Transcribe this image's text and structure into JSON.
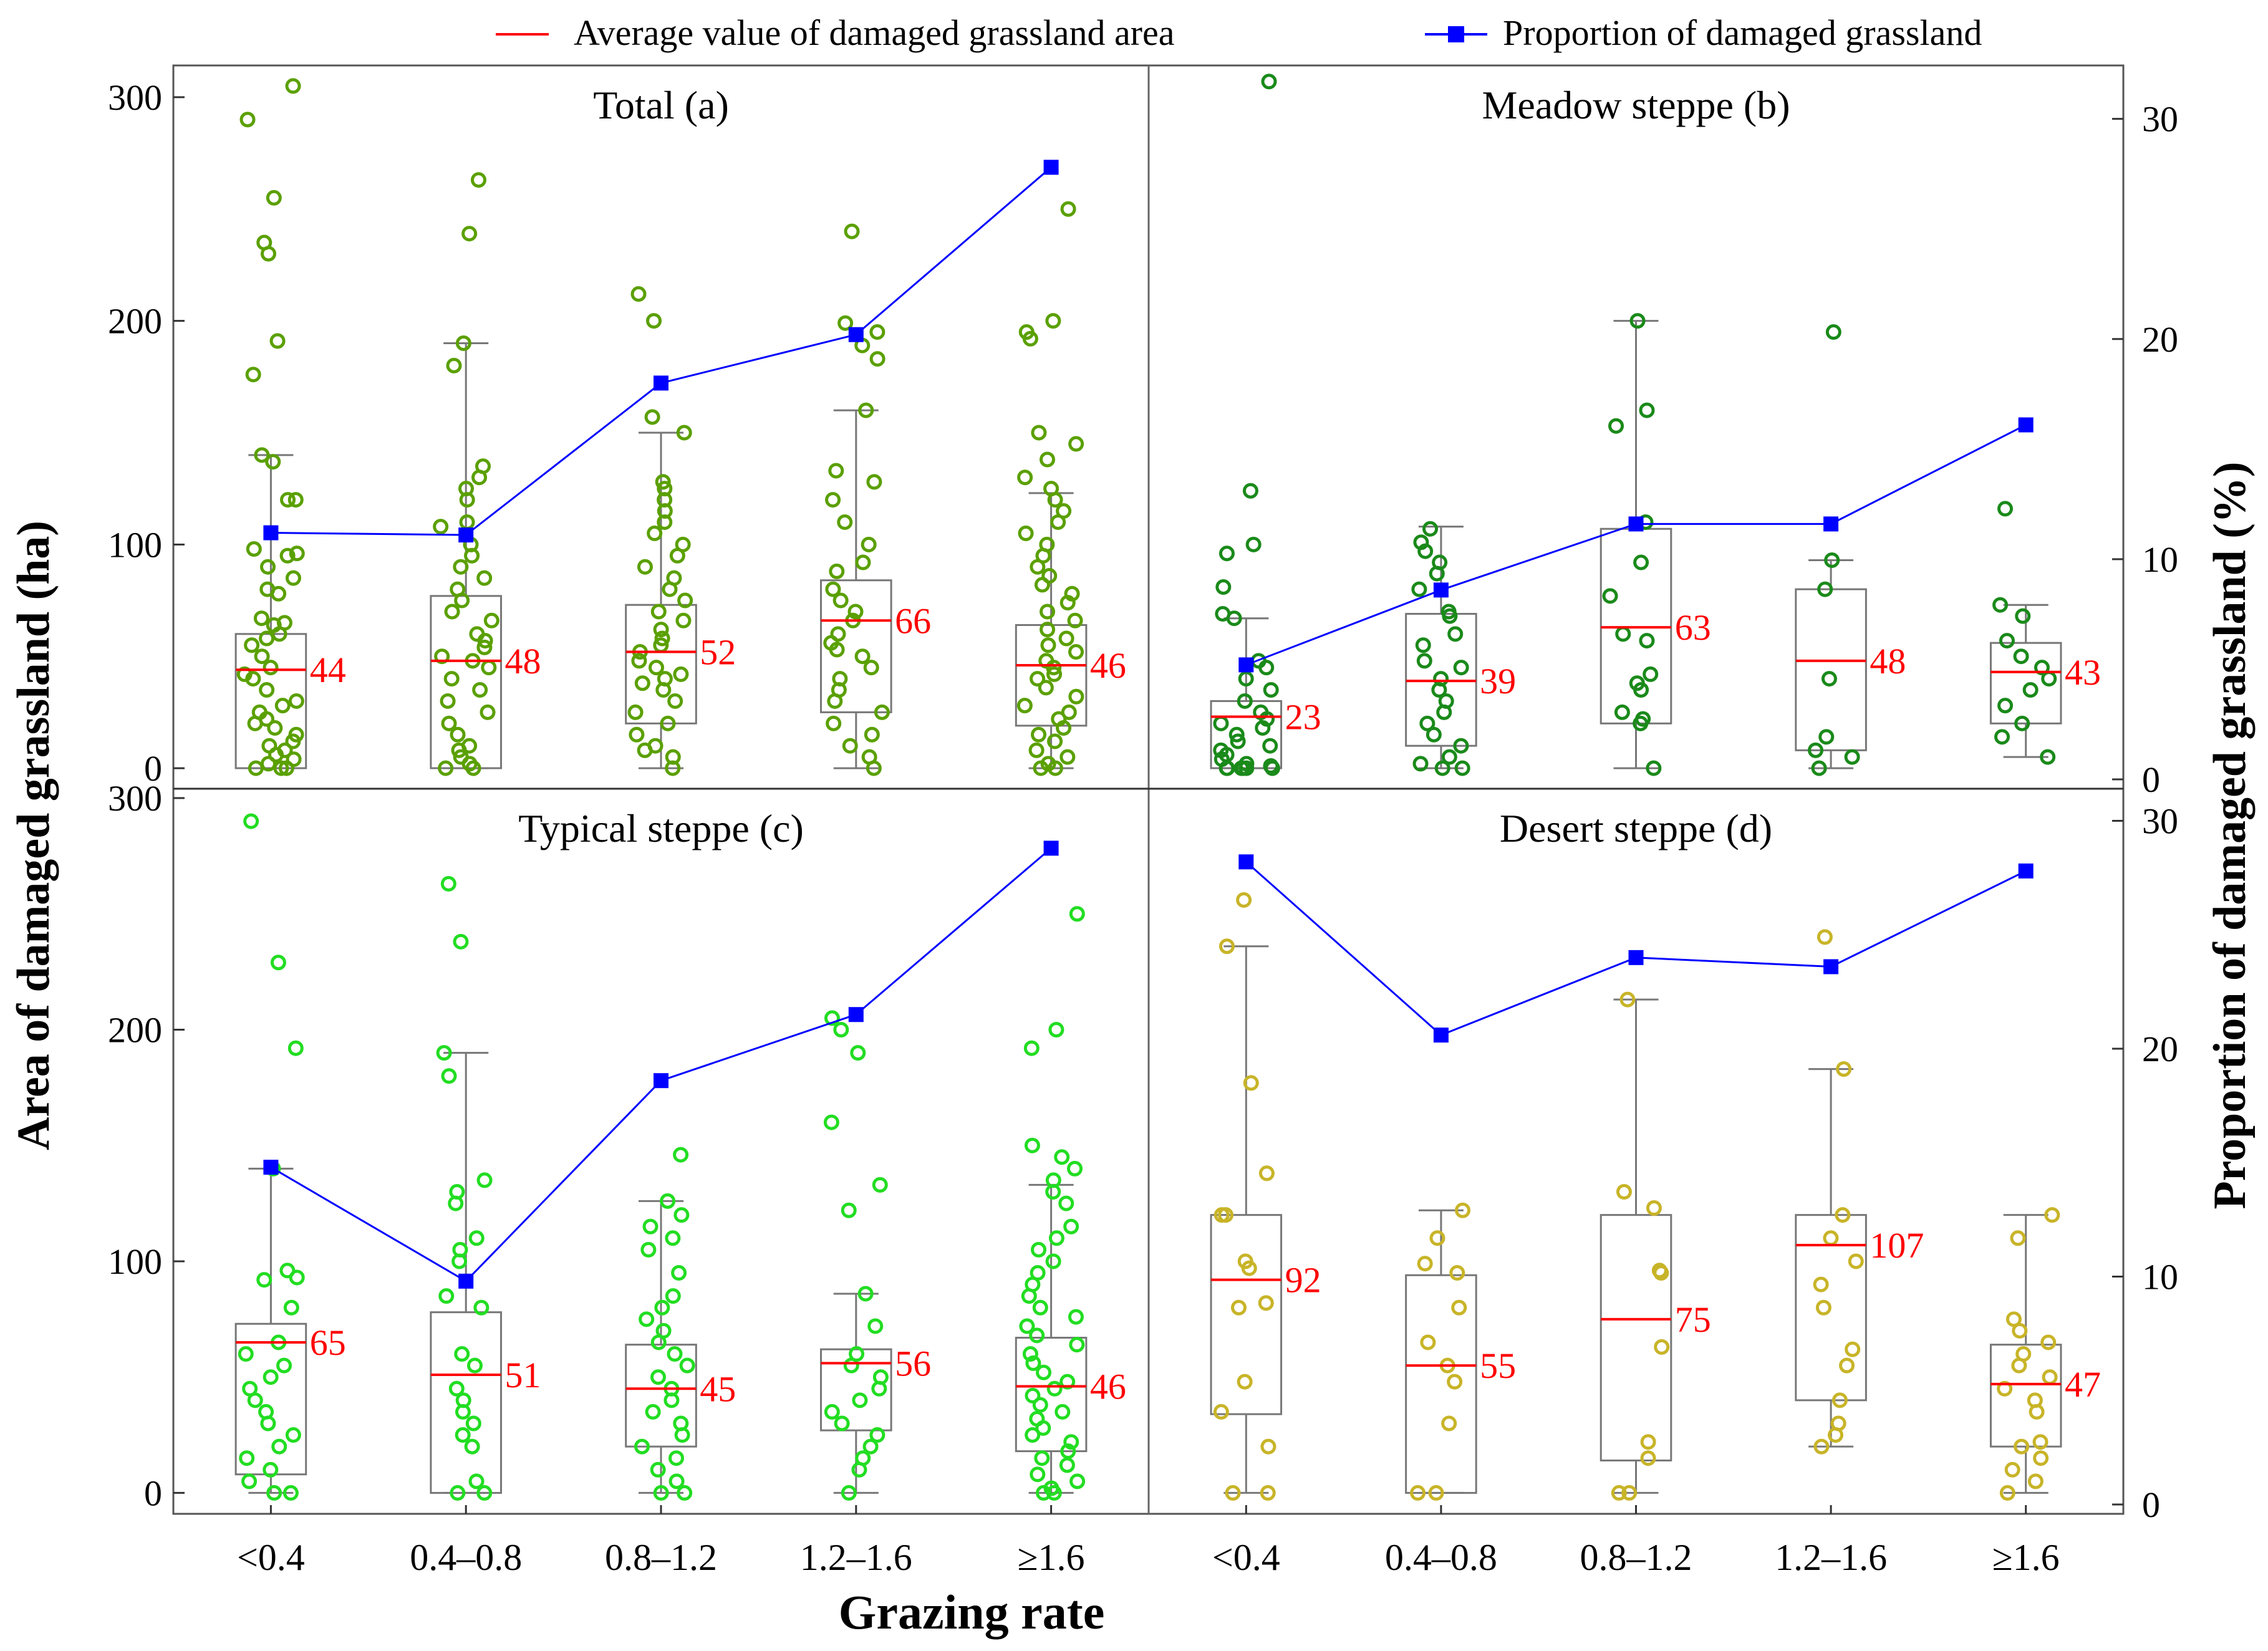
{
  "legend": {
    "avg_label": "Average value of damaged grassland area",
    "prop_label": "Proportion of damaged grassland",
    "avg_color": "#ff0000",
    "prop_color": "#0000ff"
  },
  "axes": {
    "xlabel": "Grazing rate",
    "ylabel_left": "Area  of damaged grassland (ha)",
    "ylabel_right": "Proportion of damaged grassland (%)",
    "left_ticks": [
      "0",
      "100",
      "200",
      "300"
    ],
    "right_ticks": [
      "0",
      "10",
      "20",
      "30"
    ],
    "categories": [
      "<0.4",
      "0.4–0.8",
      "0.8–1.2",
      "1.2–1.6",
      "≥1.6"
    ]
  },
  "chart_data": [
    {
      "type": "box+line",
      "title": "Total (a)",
      "point_color": "#5aa000",
      "categories": [
        "<0.4",
        "0.4–0.8",
        "0.8–1.2",
        "1.2–1.6",
        "≥1.6"
      ],
      "ylim_left": [
        -5,
        310
      ],
      "ylim_right": [
        0,
        32
      ],
      "boxes": [
        {
          "q1": 0,
          "q3": 60,
          "whisker_low": 0,
          "whisker_high": 140,
          "mean": 44,
          "label": "44"
        },
        {
          "q1": 0,
          "q3": 77,
          "whisker_low": 0,
          "whisker_high": 190,
          "mean": 48,
          "label": "48"
        },
        {
          "q1": 20,
          "q3": 73,
          "whisker_low": 0,
          "whisker_high": 150,
          "mean": 52,
          "label": "52"
        },
        {
          "q1": 25,
          "q3": 84,
          "whisker_low": 0,
          "whisker_high": 160,
          "mean": 66,
          "label": "66"
        },
        {
          "q1": 19,
          "q3": 64,
          "whisker_low": 0,
          "whisker_high": 123,
          "mean": 46,
          "label": "46"
        }
      ],
      "points": [
        [
          305,
          290,
          255,
          235,
          230,
          191,
          176,
          140,
          137,
          120,
          120,
          98,
          96,
          95,
          90,
          85,
          80,
          78,
          67,
          65,
          64,
          60,
          58,
          55,
          50,
          45,
          42,
          40,
          35,
          30,
          28,
          25,
          22,
          20,
          18,
          15,
          12,
          10,
          8,
          6,
          4,
          2,
          0,
          0,
          0
        ],
        [
          263,
          239,
          190,
          180,
          135,
          130,
          125,
          120,
          110,
          108,
          100,
          95,
          90,
          85,
          80,
          75,
          70,
          66,
          60,
          57,
          54,
          50,
          48,
          45,
          40,
          35,
          30,
          25,
          20,
          15,
          10,
          8,
          5,
          2,
          0,
          0
        ],
        [
          212,
          200,
          157,
          150,
          128,
          125,
          120,
          115,
          110,
          105,
          100,
          95,
          90,
          85,
          80,
          75,
          70,
          66,
          62,
          58,
          55,
          52,
          48,
          45,
          42,
          40,
          38,
          35,
          30,
          25,
          20,
          15,
          10,
          8,
          5,
          0
        ],
        [
          240,
          199,
          195,
          189,
          183,
          160,
          133,
          128,
          120,
          110,
          100,
          92,
          88,
          80,
          75,
          70,
          66,
          60,
          56,
          53,
          50,
          45,
          40,
          35,
          30,
          25,
          20,
          15,
          10,
          5,
          0
        ],
        [
          250,
          200,
          195,
          192,
          150,
          145,
          138,
          130,
          125,
          120,
          115,
          110,
          105,
          100,
          95,
          90,
          86,
          82,
          78,
          74,
          70,
          66,
          62,
          58,
          55,
          52,
          48,
          45,
          42,
          40,
          36,
          32,
          28,
          25,
          22,
          18,
          15,
          12,
          8,
          5,
          2,
          0,
          0
        ]
      ],
      "proportion": [
        11.2,
        11.1,
        18.0,
        20.2,
        27.8
      ]
    },
    {
      "type": "box+line",
      "title": "Meadow steppe (b)",
      "point_color": "#1a8a1a",
      "categories": [
        "<0.4",
        "0.4–0.8",
        "0.8–1.2",
        "1.2–1.6",
        "≥1.6"
      ],
      "ylim_left": [
        -5,
        310
      ],
      "ylim_right": [
        0,
        32
      ],
      "boxes": [
        {
          "q1": 0,
          "q3": 30,
          "whisker_low": 0,
          "whisker_high": 67,
          "mean": 23,
          "label": "23"
        },
        {
          "q1": 10,
          "q3": 69,
          "whisker_low": 0,
          "whisker_high": 108,
          "mean": 39,
          "label": "39"
        },
        {
          "q1": 20,
          "q3": 107,
          "whisker_low": 0,
          "whisker_high": 200,
          "mean": 63,
          "label": "63"
        },
        {
          "q1": 8,
          "q3": 80,
          "whisker_low": 0,
          "whisker_high": 93,
          "mean": 48,
          "label": "48"
        },
        {
          "q1": 20,
          "q3": 56,
          "whisker_low": 5,
          "whisker_high": 73,
          "mean": 43,
          "label": "43"
        }
      ],
      "points": [
        [
          307,
          124,
          100,
          96,
          81,
          69,
          67,
          48,
          45,
          40,
          35,
          30,
          25,
          22,
          20,
          18,
          15,
          12,
          10,
          8,
          6,
          4,
          2,
          1,
          0,
          0,
          0,
          0,
          0,
          0
        ],
        [
          107,
          101,
          97,
          92,
          87,
          80,
          70,
          68,
          60,
          55,
          48,
          45,
          40,
          35,
          30,
          25,
          20,
          15,
          10,
          5,
          2,
          0,
          0
        ],
        [
          200,
          160,
          153,
          110,
          92,
          77,
          60,
          57,
          42,
          38,
          35,
          25,
          22,
          20,
          0
        ],
        [
          195,
          93,
          80,
          40,
          14,
          8,
          5,
          0
        ],
        [
          116,
          73,
          68,
          57,
          50,
          45,
          40,
          35,
          28,
          20,
          14,
          5
        ]
      ],
      "proportion": [
        5.2,
        8.6,
        11.6,
        11.6,
        16.1
      ]
    },
    {
      "type": "box+line",
      "title": "Typical steppe (c)",
      "point_color": "#22dd22",
      "categories": [
        "<0.4",
        "0.4–0.8",
        "0.8–1.2",
        "1.2–1.6",
        "≥1.6"
      ],
      "ylim_left": [
        -5,
        300
      ],
      "ylim_right": [
        0,
        31
      ],
      "boxes": [
        {
          "q1": 8,
          "q3": 73,
          "whisker_low": 0,
          "whisker_high": 140,
          "mean": 65,
          "label": "65"
        },
        {
          "q1": 0,
          "q3": 78,
          "whisker_low": 0,
          "whisker_high": 190,
          "mean": 51,
          "label": "51"
        },
        {
          "q1": 20,
          "q3": 64,
          "whisker_low": 0,
          "whisker_high": 126,
          "mean": 45,
          "label": "45"
        },
        {
          "q1": 27,
          "q3": 62,
          "whisker_low": 0,
          "whisker_high": 86,
          "mean": 56,
          "label": "56"
        },
        {
          "q1": 18,
          "q3": 67,
          "whisker_low": 0,
          "whisker_high": 133,
          "mean": 46,
          "label": "46"
        }
      ],
      "points": [
        [
          290,
          229,
          192,
          140,
          96,
          93,
          92,
          80,
          65,
          60,
          55,
          50,
          45,
          40,
          35,
          30,
          25,
          20,
          15,
          10,
          5,
          0,
          0
        ],
        [
          263,
          238,
          190,
          180,
          135,
          130,
          125,
          110,
          105,
          100,
          85,
          80,
          60,
          55,
          45,
          40,
          35,
          30,
          25,
          20,
          5,
          0,
          0
        ],
        [
          146,
          126,
          120,
          115,
          110,
          105,
          95,
          85,
          80,
          75,
          70,
          65,
          60,
          55,
          50,
          45,
          40,
          35,
          30,
          25,
          20,
          15,
          10,
          5,
          0,
          0
        ],
        [
          205,
          200,
          190,
          160,
          133,
          122,
          86,
          72,
          60,
          55,
          50,
          45,
          40,
          35,
          30,
          25,
          20,
          15,
          10,
          0
        ],
        [
          250,
          200,
          192,
          150,
          145,
          140,
          135,
          130,
          125,
          115,
          110,
          105,
          100,
          95,
          90,
          85,
          80,
          76,
          72,
          68,
          64,
          60,
          56,
          52,
          48,
          45,
          42,
          38,
          35,
          32,
          28,
          25,
          22,
          18,
          15,
          12,
          8,
          5,
          2,
          0,
          0
        ]
      ],
      "proportion": [
        14.8,
        9.8,
        18.6,
        21.5,
        28.8
      ]
    },
    {
      "type": "box+line",
      "title": "Desert steppe (d)",
      "point_color": "#c8b428",
      "categories": [
        "<0.4",
        "0.4–0.8",
        "0.8–1.2",
        "1.2–1.6",
        "≥1.6"
      ],
      "ylim_left": [
        -5,
        300
      ],
      "ylim_right": [
        0,
        31
      ],
      "boxes": [
        {
          "q1": 34,
          "q3": 120,
          "whisker_low": 0,
          "whisker_high": 236,
          "mean": 92,
          "label": "92"
        },
        {
          "q1": 0,
          "q3": 94,
          "whisker_low": 0,
          "whisker_high": 122,
          "mean": 55,
          "label": "55"
        },
        {
          "q1": 14,
          "q3": 120,
          "whisker_low": 0,
          "whisker_high": 213,
          "mean": 75,
          "label": "75"
        },
        {
          "q1": 40,
          "q3": 120,
          "whisker_low": 20,
          "whisker_high": 183,
          "mean": 107,
          "label": "107"
        },
        {
          "q1": 20,
          "q3": 64,
          "whisker_low": 0,
          "whisker_high": 120,
          "mean": 47,
          "label": "47"
        }
      ],
      "points": [
        [
          256,
          236,
          177,
          138,
          120,
          120,
          100,
          97,
          82,
          80,
          48,
          35,
          20,
          0,
          0
        ],
        [
          122,
          110,
          99,
          95,
          80,
          65,
          55,
          48,
          30,
          0,
          0
        ],
        [
          213,
          130,
          123,
          96,
          95,
          63,
          22,
          15,
          0,
          0
        ],
        [
          240,
          183,
          120,
          110,
          100,
          90,
          80,
          62,
          55,
          40,
          30,
          25,
          20
        ],
        [
          120,
          110,
          75,
          70,
          65,
          60,
          55,
          50,
          45,
          40,
          35,
          22,
          20,
          15,
          10,
          5,
          0
        ]
      ],
      "proportion": [
        28.2,
        20.6,
        24.0,
        23.6,
        27.8
      ]
    }
  ]
}
